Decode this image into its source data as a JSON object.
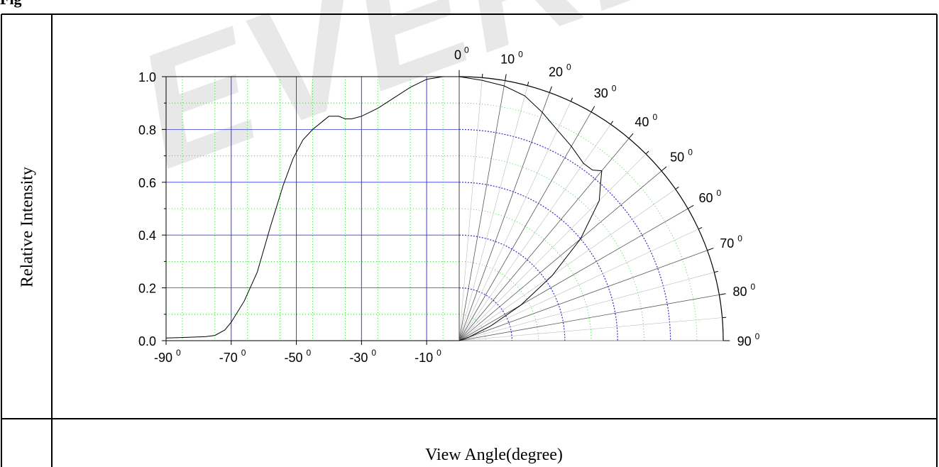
{
  "heading": "Fig",
  "watermark": "EVERLIG",
  "chart_data": {
    "type": "line",
    "ylabel": "Relative Intensity",
    "xlabel": "View Angle(degree)",
    "ylim": [
      0.0,
      1.0
    ],
    "yticks": [
      "0.0",
      "0.2",
      "0.4",
      "0.6",
      "0.8",
      "1.0"
    ],
    "left_xticks": [
      {
        "angle": -90,
        "label": "-90"
      },
      {
        "angle": -70,
        "label": "-70"
      },
      {
        "angle": -50,
        "label": "-50"
      },
      {
        "angle": -30,
        "label": "-30"
      },
      {
        "angle": -10,
        "label": "-10"
      }
    ],
    "polar_ticks": [
      {
        "angle": 0,
        "label": "0"
      },
      {
        "angle": 10,
        "label": "10"
      },
      {
        "angle": 20,
        "label": "20"
      },
      {
        "angle": 30,
        "label": "30"
      },
      {
        "angle": 40,
        "label": "40"
      },
      {
        "angle": 50,
        "label": "50"
      },
      {
        "angle": 60,
        "label": "60"
      },
      {
        "angle": 70,
        "label": "70"
      },
      {
        "angle": 80,
        "label": "80"
      },
      {
        "angle": 90,
        "label": "90"
      }
    ],
    "degree_symbol": "0",
    "cartesian_curve": {
      "x": [
        -90,
        -78,
        -75,
        -72,
        -70,
        -66,
        -62,
        -58,
        -54,
        -51,
        -48,
        -45,
        -42,
        -40,
        -37,
        -35,
        -33,
        -30,
        -25,
        -20,
        -15,
        -10,
        -5,
        -2,
        0
      ],
      "y": [
        0.01,
        0.015,
        0.02,
        0.04,
        0.07,
        0.15,
        0.26,
        0.43,
        0.59,
        0.69,
        0.76,
        0.8,
        0.83,
        0.85,
        0.85,
        0.84,
        0.84,
        0.85,
        0.88,
        0.92,
        0.96,
        0.99,
        1.0,
        1.0,
        1.0
      ]
    },
    "polar_curve": {
      "angle": [
        0,
        5,
        10,
        15,
        20,
        25,
        30,
        35,
        38,
        40,
        42,
        45,
        50,
        55,
        60,
        65,
        70
      ],
      "r": [
        1.0,
        0.99,
        0.98,
        0.96,
        0.92,
        0.88,
        0.85,
        0.82,
        0.82,
        0.84,
        0.8,
        0.75,
        0.6,
        0.43,
        0.27,
        0.13,
        0.04
      ]
    }
  }
}
